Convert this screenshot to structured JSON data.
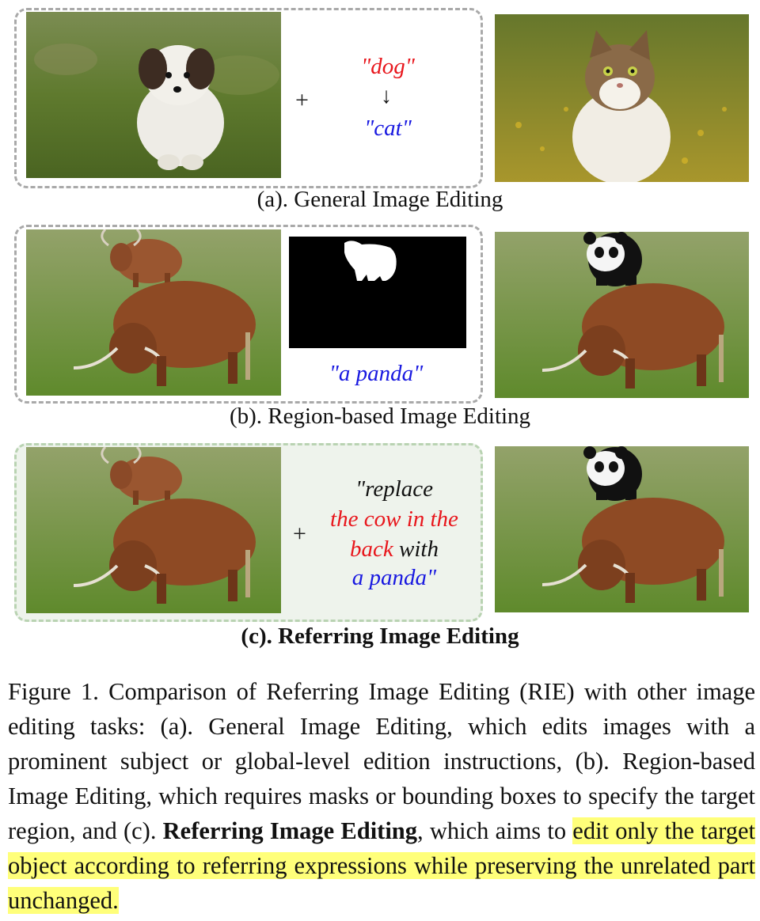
{
  "panels": {
    "a": {
      "caption": "(a). General Image Editing",
      "source_word": "\"dog\"",
      "arrow": "↓",
      "target_word": "\"cat\"",
      "plus": "+"
    },
    "b": {
      "caption": "(b). Region-based Image Editing",
      "prompt": "\"a panda\""
    },
    "c": {
      "caption": "(c). Referring Image Editing",
      "plus": "+",
      "prompt_line1": "\"replace",
      "prompt_line2": "the cow in the",
      "prompt_line3a": "back",
      "prompt_line3b": " with",
      "prompt_line4": "a panda\""
    }
  },
  "figure_caption": {
    "part1": "Figure 1. Comparison of Referring Image Editing (RIE) with other image editing tasks: (a). General Image Editing, which edits images with a prominent subject or global-level edition instructions, (b). Region-based Image Editing, which requires masks or bounding boxes to specify the target region, and (c). ",
    "bold1": "Referring Image Editing",
    "part2": ", which aims to ",
    "highlight": "edit only the target object according to referring expressions while preserving the unrelated part unchanged."
  },
  "colors": {
    "source_red": "#e8161c",
    "target_blue": "#1818e0",
    "highlight": "#ffff7a",
    "grass": "#6f8f3a",
    "cow": "#8e4a24"
  }
}
